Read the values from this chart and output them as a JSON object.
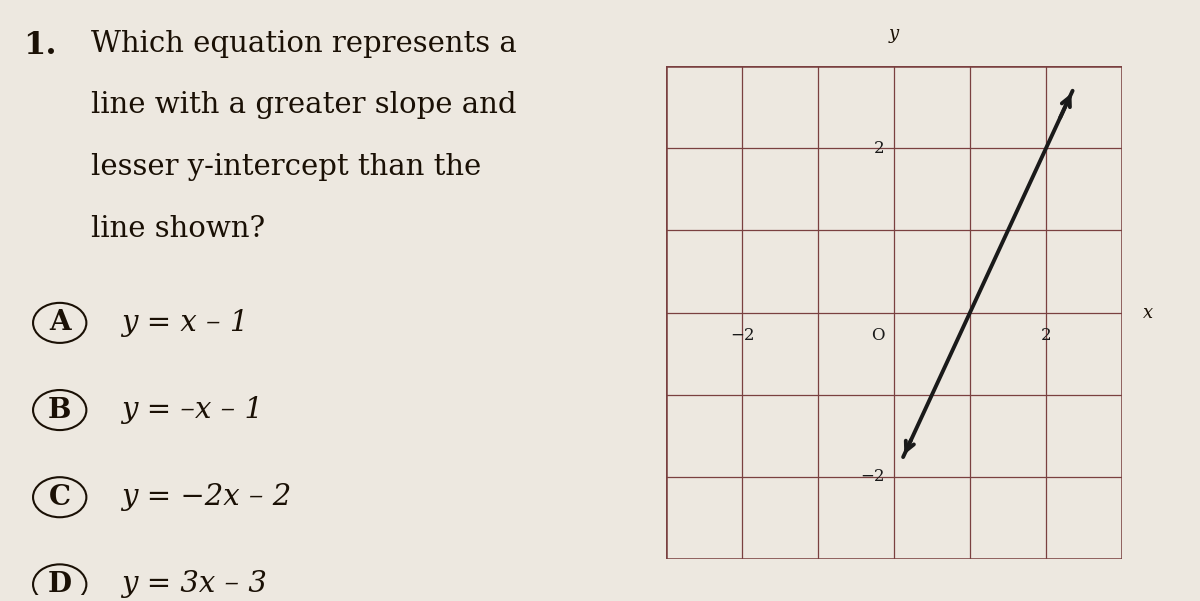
{
  "background_color": "#ede8e0",
  "question_number": "1.",
  "question_text_lines": [
    "Which equation represents a",
    "line with a greater slope and",
    "lesser y-intercept than the",
    "line shown?"
  ],
  "choices": [
    {
      "label": "A",
      "equation": "y = x – 1"
    },
    {
      "label": "B",
      "equation": "y = –x – 1"
    },
    {
      "label": "C",
      "equation": "y = −2x – 2"
    },
    {
      "label": "D",
      "equation": "y = 3x – 3"
    }
  ],
  "graph": {
    "xlim": [
      -3,
      3
    ],
    "ylim": [
      -3,
      3
    ],
    "xticks": [
      -2,
      0,
      2
    ],
    "yticks": [
      -2,
      0,
      2
    ],
    "xlabel": "x",
    "ylabel": "y",
    "line_slope": 2,
    "line_intercept": -2,
    "line_color": "#1a1a1a",
    "line_width": 2.8,
    "grid_color": "#7a4040",
    "axis_color": "#1a1a1a",
    "tick_label_color": "#1a1a1a",
    "tick_fontsize": 12,
    "axis_label_fontsize": 13
  },
  "question_fontsize": 21,
  "choice_fontsize": 21,
  "question_number_fontsize": 23,
  "text_color": "#1a1005"
}
